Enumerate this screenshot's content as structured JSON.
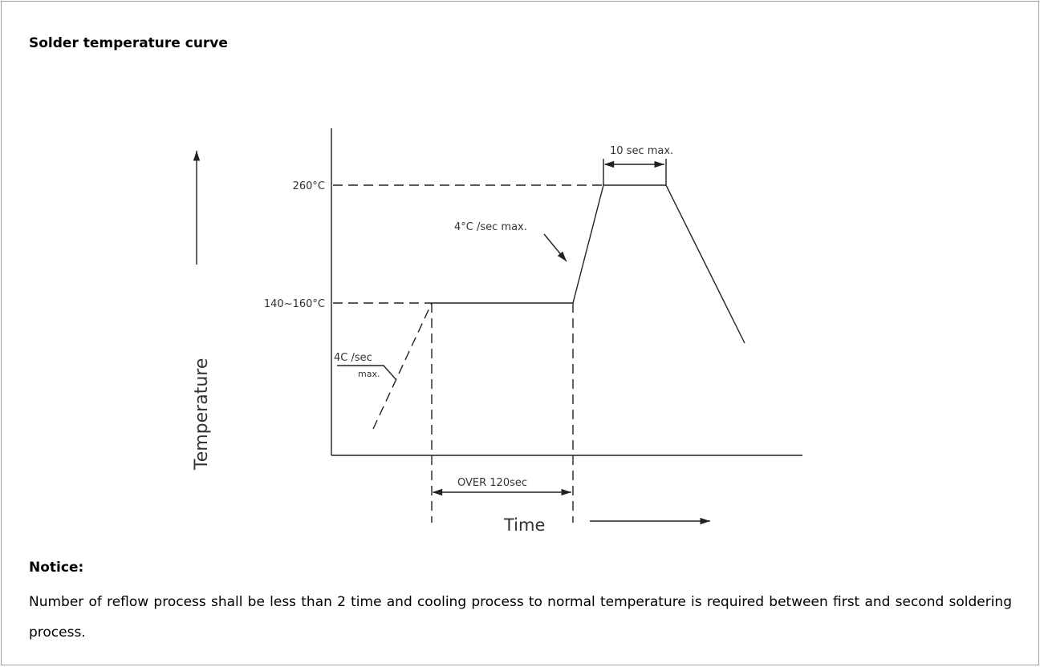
{
  "title": "Solder temperature curve",
  "diagram": {
    "y_axis_label": "Temperature",
    "x_axis_label": "Time",
    "peak_label": "260°C",
    "preheat_label": "140~160°C",
    "peak_time_label": "10 sec max.",
    "ramp_up_label": "4°C /sec max.",
    "preheat_ramp_label": [
      "4C /sec",
      "max."
    ],
    "preheat_time_label": "OVER 120sec"
  },
  "notice": {
    "heading": "Notice:",
    "text": "Number of reflow process shall be less than 2 time and cooling process to normal temperature is required between first and second soldering process."
  }
}
